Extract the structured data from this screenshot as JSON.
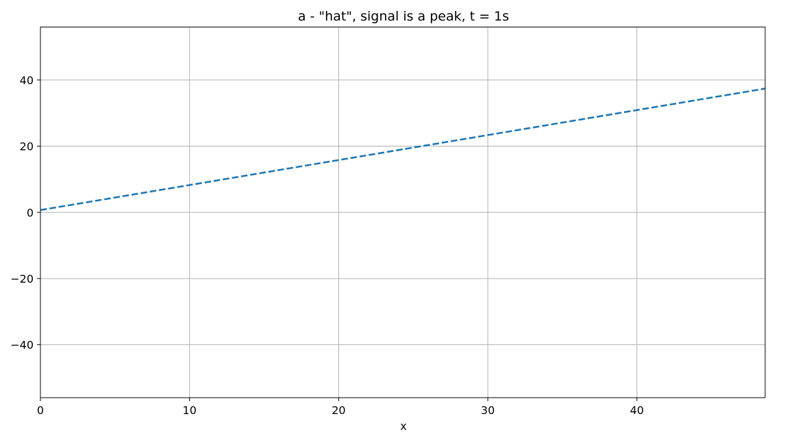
{
  "chart_data": {
    "type": "line",
    "title": "a - \"hat\", signal is a peak, t = 1s",
    "xlabel": "x",
    "ylabel": "",
    "xlim": [
      0,
      48.6
    ],
    "ylim": [
      -56,
      56
    ],
    "xticks": [
      0,
      10,
      20,
      30,
      40
    ],
    "yticks": [
      -40,
      -20,
      0,
      20,
      40
    ],
    "xtick_labels": [
      "0",
      "10",
      "20",
      "30",
      "40"
    ],
    "ytick_labels": [
      "−40",
      "−20",
      "0",
      "20",
      "40"
    ],
    "grid": true,
    "series": [
      {
        "color": "#1f77b4",
        "line_style": "dashed",
        "x": [
          0,
          48.6
        ],
        "y": [
          0.7,
          37.4
        ]
      }
    ]
  }
}
